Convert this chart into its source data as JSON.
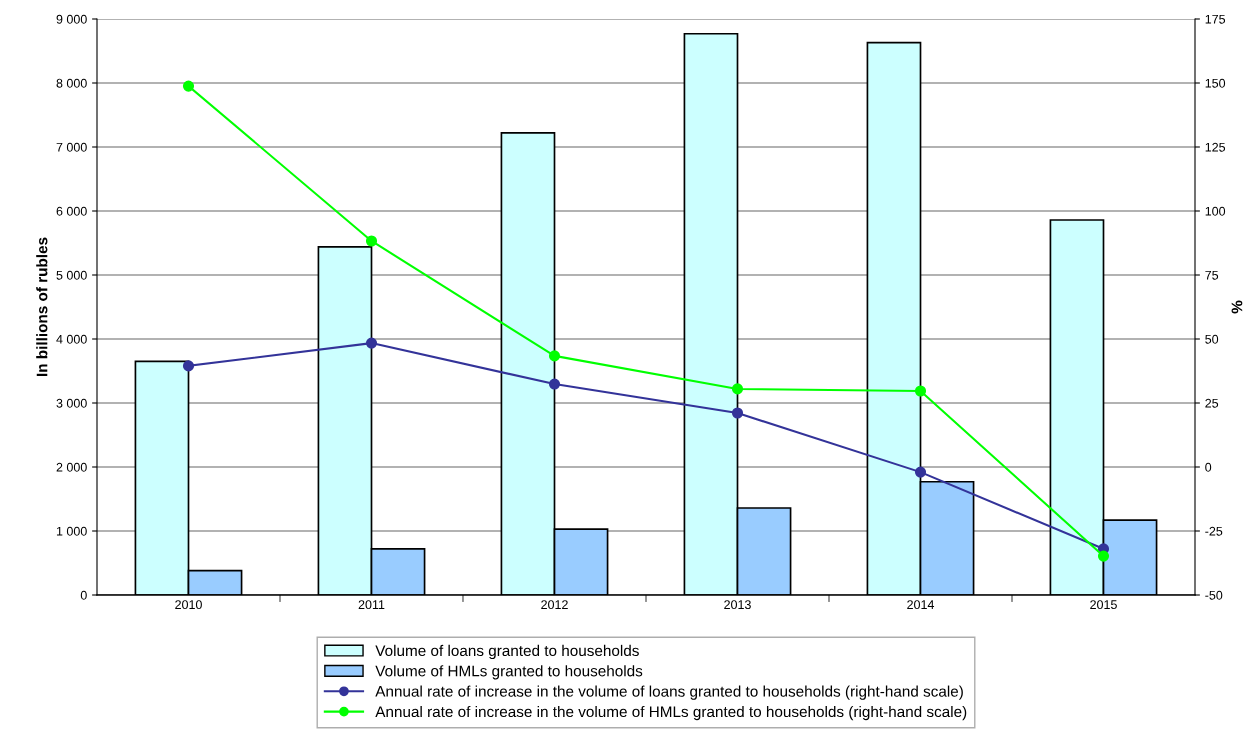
{
  "chart_data": {
    "type": "bar",
    "ylabel": "In billions of rubles",
    "y2label": "%",
    "categories": [
      "2010",
      "2011",
      "2012",
      "2013",
      "2014",
      "2015"
    ],
    "series": [
      {
        "name": "Volume of loans granted to households",
        "color": "#ccffff",
        "values": [
          3650,
          5440,
          7220,
          8770,
          8630,
          5860
        ]
      },
      {
        "name": "Volume of HMLs granted to households",
        "color": "#99ccff",
        "values": [
          380,
          720,
          1030,
          1360,
          1770,
          1170
        ]
      },
      {
        "name": "Annual rate of increase in the volume of loans granted to households (right-hand scale)",
        "type": "line",
        "axis": "y2",
        "color": "#333399",
        "values": [
          39.5,
          48.4,
          32.4,
          21.1,
          -2,
          -32
        ]
      },
      {
        "name": "Annual rate of increase in the volume of HMLs granted to households (right-hand scale)",
        "type": "line",
        "axis": "y2",
        "color": "#00ff00",
        "values": [
          148.8,
          88.3,
          43.4,
          30.5,
          29.7,
          -34.8
        ]
      }
    ],
    "ylim": [
      0,
      9000
    ],
    "yticks": [
      0,
      {
        "value": 1000,
        "label": "1 000"
      },
      {
        "value": 2000,
        "label": "2 000"
      },
      {
        "value": 3000,
        "label": "3 000"
      },
      {
        "value": 4000,
        "label": "4 000"
      },
      {
        "value": 5000,
        "label": "5 000"
      },
      {
        "value": 6000,
        "label": "6 000"
      },
      {
        "value": 7000,
        "label": "7 000"
      },
      {
        "value": 8000,
        "label": "8 000"
      },
      {
        "value": 9000,
        "label": "9 000"
      }
    ],
    "y2lim": [
      -50,
      175
    ],
    "y2ticks": [
      -50,
      -25,
      0,
      25,
      50,
      75,
      100,
      125,
      150,
      175
    ],
    "grid": "y",
    "legend": "bottom",
    "marker": "circle",
    "line_style": "solid"
  }
}
